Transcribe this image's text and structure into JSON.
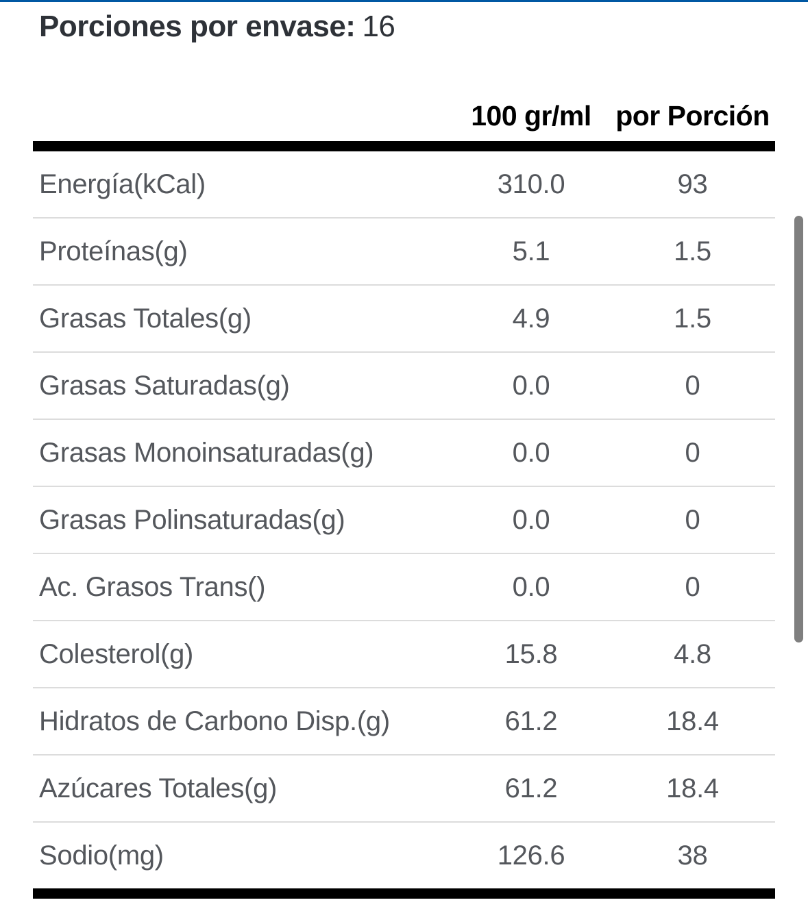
{
  "serving_info": {
    "label": "Porciones por envase:",
    "value": "16"
  },
  "table": {
    "columns": [
      "100 gr/ml",
      "por Porción"
    ],
    "rows": [
      {
        "name": "Energía(kCal)",
        "per_100": "310.0",
        "per_serving": "93"
      },
      {
        "name": "Proteínas(g)",
        "per_100": "5.1",
        "per_serving": "1.5"
      },
      {
        "name": "Grasas Totales(g)",
        "per_100": "4.9",
        "per_serving": "1.5"
      },
      {
        "name": "Grasas Saturadas(g)",
        "per_100": "0.0",
        "per_serving": "0"
      },
      {
        "name": "Grasas Monoinsaturadas(g)",
        "per_100": "0.0",
        "per_serving": "0"
      },
      {
        "name": "Grasas Polinsaturadas(g)",
        "per_100": "0.0",
        "per_serving": "0"
      },
      {
        "name": "Ac. Grasos Trans()",
        "per_100": "0.0",
        "per_serving": "0"
      },
      {
        "name": "Colesterol(g)",
        "per_100": "15.8",
        "per_serving": "4.8"
      },
      {
        "name": "Hidratos de Carbono Disp.(g)",
        "per_100": "61.2",
        "per_serving": "18.4"
      },
      {
        "name": "Azúcares Totales(g)",
        "per_100": "61.2",
        "per_serving": "18.4"
      },
      {
        "name": "Sodio(mg)",
        "per_100": "126.6",
        "per_serving": "38"
      }
    ]
  },
  "colors": {
    "top_accent": "#0058a3",
    "title_text": "#2e3238",
    "header_text": "#000000",
    "row_text": "#54575c",
    "separator": "#dcdcdc",
    "thick_bar": "#000000",
    "scrollbar_thumb": "#7f7f7f"
  }
}
